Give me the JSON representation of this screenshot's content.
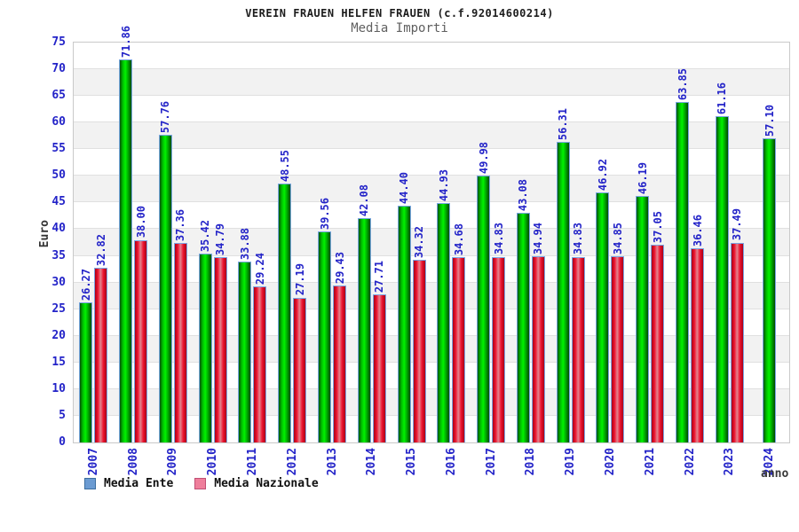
{
  "header": {
    "title": "VEREIN FRAUEN HELFEN FRAUEN (c.f.92014600214)",
    "subtitle": "Media Importi"
  },
  "chart_data": {
    "type": "bar",
    "title": "VEREIN FRAUEN HELFEN FRAUEN (c.f.92014600214)",
    "subtitle": "Media Importi",
    "categories": [
      "2007",
      "2008",
      "2009",
      "2010",
      "2011",
      "2012",
      "2013",
      "2014",
      "2015",
      "2016",
      "2017",
      "2018",
      "2019",
      "2020",
      "2021",
      "2022",
      "2023",
      "2024"
    ],
    "series": [
      {
        "name": "Media Ente",
        "values": [
          26.27,
          71.86,
          57.76,
          35.42,
          33.88,
          48.55,
          39.56,
          42.08,
          44.4,
          44.93,
          49.98,
          43.08,
          56.31,
          46.92,
          46.19,
          63.85,
          61.16,
          57.1
        ],
        "labels": [
          "26.27",
          "71.86",
          "57.76",
          "35.42",
          "33.88",
          "48.55",
          "39.56",
          "42.08",
          "44.40",
          "44.93",
          "49.98",
          "43.08",
          "56.31",
          "46.92",
          "46.19",
          "63.85",
          "61.16",
          "57.10"
        ]
      },
      {
        "name": "Media Nazionale",
        "values": [
          32.82,
          38.0,
          37.36,
          34.79,
          29.24,
          27.19,
          29.43,
          27.71,
          34.32,
          34.68,
          34.83,
          34.94,
          34.83,
          34.85,
          37.05,
          36.46,
          37.49,
          null
        ],
        "labels": [
          "32.82",
          "38.00",
          "37.36",
          "34.79",
          "29.24",
          "27.19",
          "29.43",
          "27.71",
          "34.32",
          "34.68",
          "34.83",
          "34.94",
          "34.83",
          "34.85",
          "37.05",
          "36.46",
          "37.49",
          ""
        ]
      }
    ],
    "xlabel": "anno",
    "ylabel": "Euro",
    "ylim": [
      0,
      75
    ],
    "ytick_step": 5,
    "ytick_labels": [
      "0",
      "5",
      "10",
      "15",
      "20",
      "25",
      "30",
      "35",
      "40",
      "45",
      "50",
      "55",
      "60",
      "65",
      "70",
      "75"
    ],
    "grid": "horizontal-bands-alternating",
    "legend_position": "bottom-left",
    "bar_value_labels_rotated": true
  },
  "legend": {
    "items": [
      {
        "label": "Media Ente",
        "swatch_color": "#6b9bd2",
        "swatch_border": "#3c6e9f"
      },
      {
        "label": "Media Nazionale",
        "swatch_color": "#ef7e9b",
        "swatch_border": "#c04f74"
      }
    ]
  },
  "colors": {
    "value_label_blue": "#2323c8",
    "tick_label_blue": "#2323c8",
    "bar_border_blue": "#7aa6e4",
    "ente_gradient": [
      "#005200",
      "#00bc00",
      "#00f200",
      "#00a800",
      "#004a00"
    ],
    "nazionale_gradient": [
      "#a80016",
      "#ee1430",
      "#e2848f",
      "#ee1430",
      "#a80016"
    ],
    "band_gray": "#f2f2f2",
    "gridline": "#e0e0e0"
  }
}
